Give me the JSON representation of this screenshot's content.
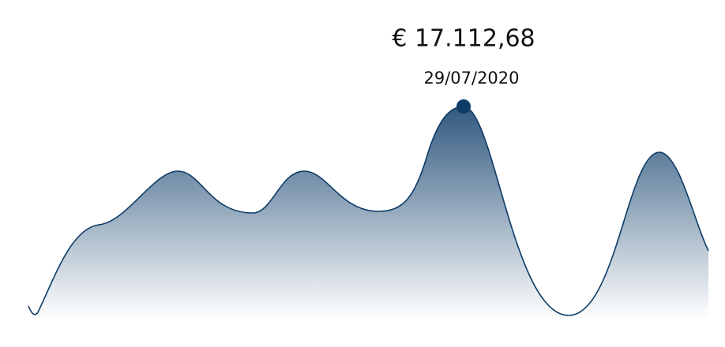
{
  "tooltip": {
    "value": "€ 17.112,68",
    "date": "29/07/2020"
  }
}
